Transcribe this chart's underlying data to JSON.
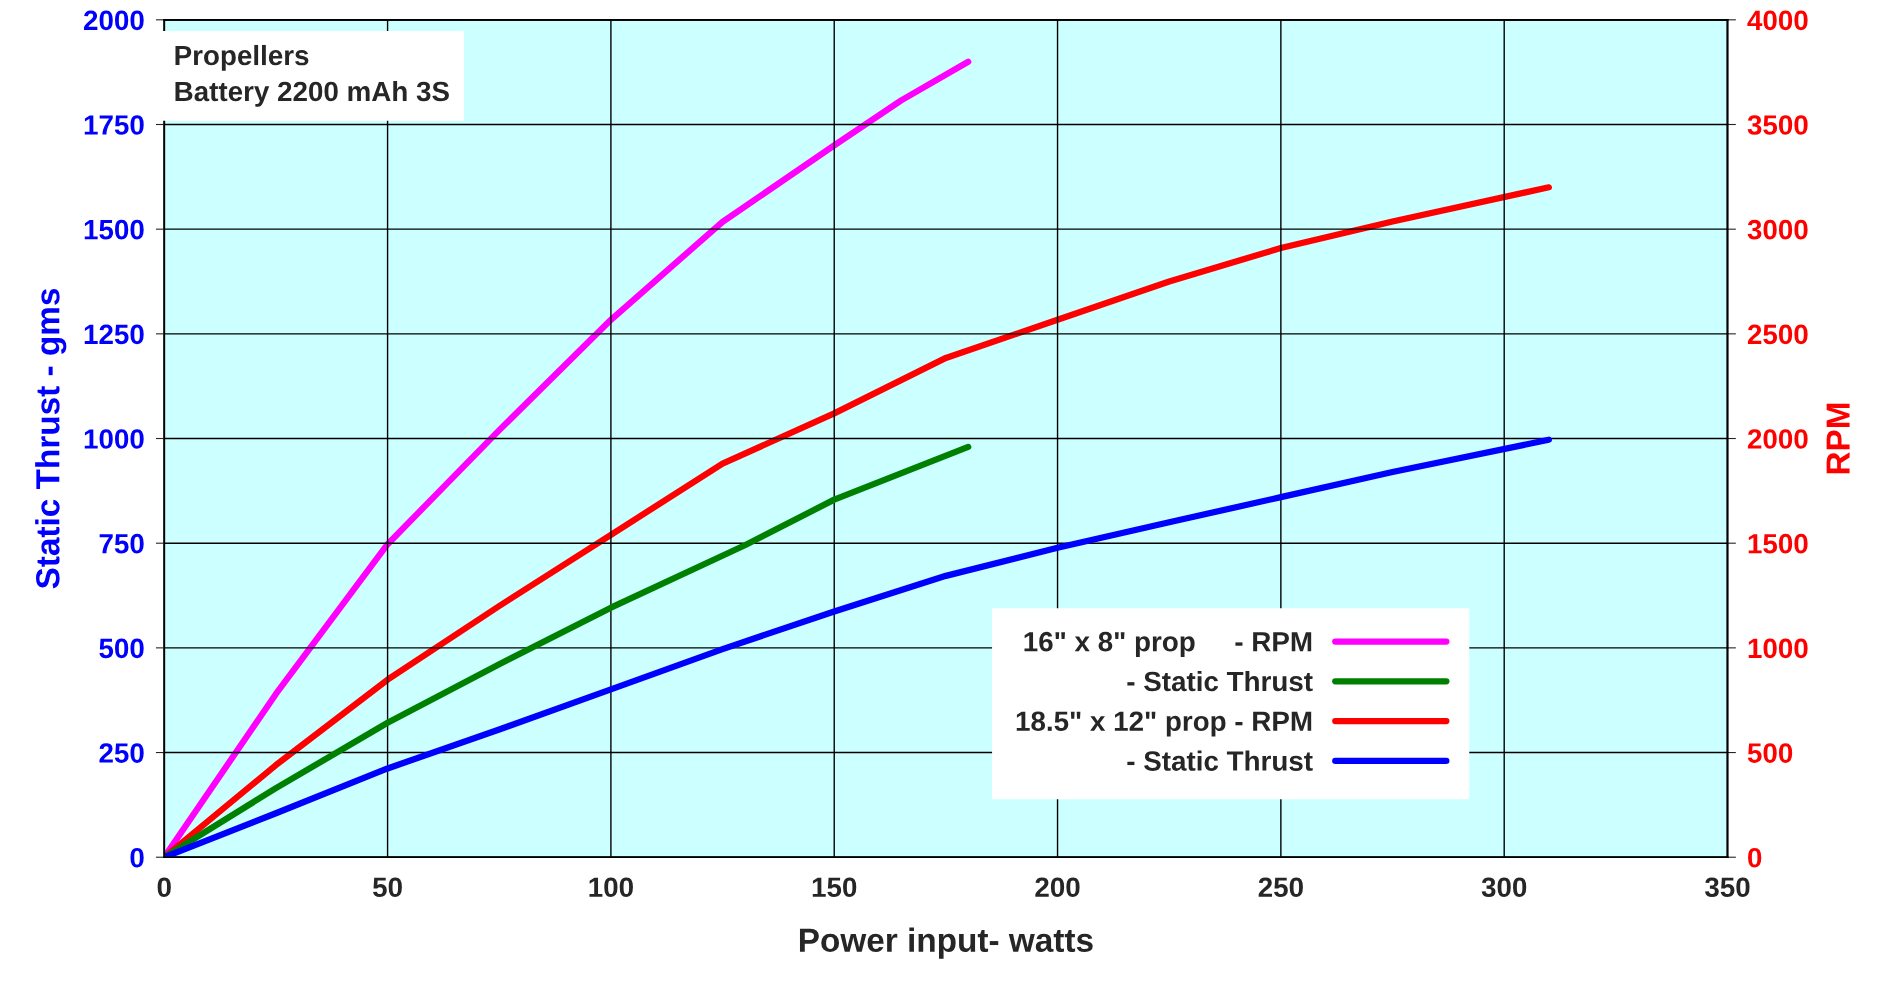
{
  "chart_data": {
    "type": "line",
    "xlabel": "Power input- watts",
    "ylabel": "Static Thrust - gms",
    "y2label": "RPM",
    "annotations": [
      "Propellers",
      "Battery 2200 mAh 3S"
    ],
    "xlim": [
      0,
      350
    ],
    "xticks": [
      0,
      50,
      100,
      150,
      200,
      250,
      300,
      350
    ],
    "ylim": [
      0,
      2000
    ],
    "yticks": [
      0,
      250,
      500,
      750,
      1000,
      1250,
      1500,
      1750,
      2000
    ],
    "y2lim": [
      0,
      4000
    ],
    "y2ticks": [
      0,
      500,
      1000,
      1500,
      2000,
      2500,
      3000,
      3500,
      4000
    ],
    "grid": true,
    "legend": "bottom right",
    "line_style": "solid",
    "marker": "none",
    "series": [
      {
        "name": "16\" x 8\" prop     - RPM",
        "color": "#ff00ff",
        "axis": "y2",
        "x": [
          0,
          25,
          50,
          75,
          100,
          125,
          150,
          165,
          180
        ],
        "values": [
          0,
          780,
          1495,
          2040,
          2567,
          3035,
          3400,
          3615,
          3800
        ]
      },
      {
        "name": "- Static Thrust",
        "color": "#008000",
        "x": [
          0,
          25,
          50,
          75,
          100,
          130,
          150,
          180
        ],
        "values": [
          0,
          165,
          321,
          461,
          596,
          745,
          854,
          980
        ]
      },
      {
        "name": "18.5\" x 12\" prop - RPM",
        "color": "#ff0000",
        "axis": "y2",
        "x": [
          0,
          25,
          50,
          75,
          100,
          125,
          150,
          175,
          200,
          225,
          250,
          275,
          310
        ],
        "values": [
          0,
          440,
          848,
          1200,
          1540,
          1880,
          2120,
          2385,
          2567,
          2750,
          2910,
          3037,
          3200
        ]
      },
      {
        "name": "- Static Thrust",
        "color": "#0000ff",
        "x": [
          0,
          25,
          50,
          75,
          100,
          125,
          150,
          175,
          200,
          225,
          250,
          275,
          310
        ],
        "values": [
          0,
          105,
          212,
          305,
          401,
          497,
          587,
          672,
          739,
          800,
          860,
          920,
          997
        ]
      }
    ]
  }
}
